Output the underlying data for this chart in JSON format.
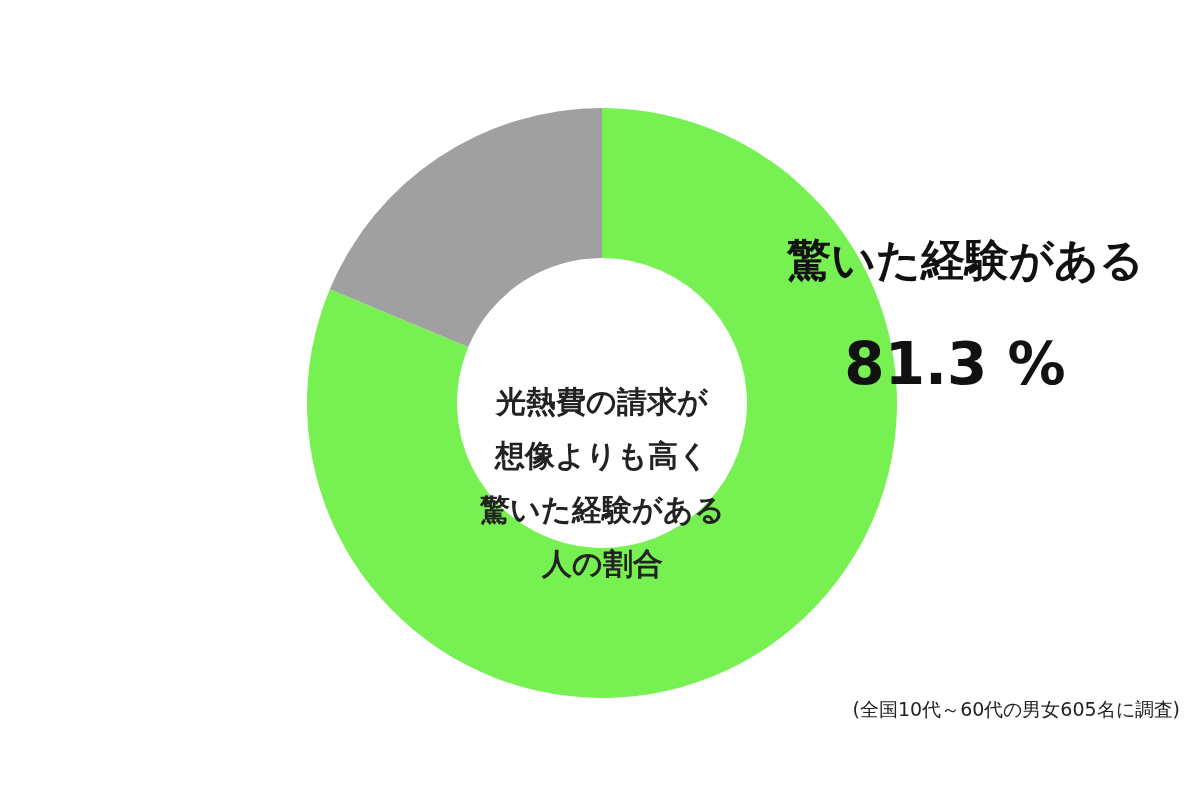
{
  "chart_data": {
    "type": "donut",
    "title": "光熱費の請求が想像よりも高く驚いた経験がある人の割合",
    "categories": [
      "驚いた経験がある",
      null
    ],
    "values": [
      81.3,
      18.7
    ],
    "colors": [
      "#77f152",
      "#a0a0a0"
    ],
    "value_labels": [
      "81.3 %",
      null
    ],
    "annotations": [
      "(全国10代～60代の男女605名に調査)"
    ]
  }
}
